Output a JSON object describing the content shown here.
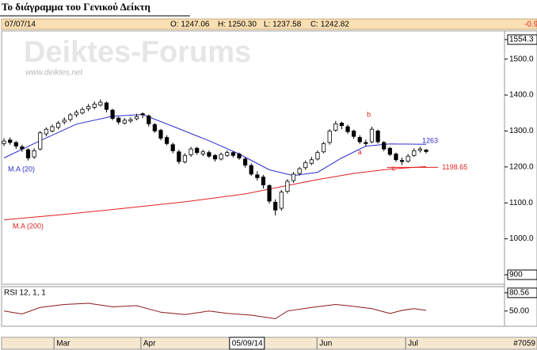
{
  "page_title": "Το διάγραμμα του Γενικού Δείκτη",
  "header": {
    "date": "07/07/14",
    "open": "O: 1247.06",
    "high": "H: 1250.30",
    "low": "L: 1237.58",
    "close": "C: 1242.82",
    "change": "-0.9"
  },
  "watermark": {
    "title": "Deiktes-Forums",
    "url": "www.deiktes.net"
  },
  "record_count": "#7059",
  "chart_data": [
    {
      "type": "candlestick",
      "up_color": "#ffffff",
      "down_color": "#000000",
      "candles": [
        [
          1265,
          1280,
          1258,
          1272
        ],
        [
          1275,
          1282,
          1262,
          1268
        ],
        [
          1268,
          1272,
          1250,
          1258
        ],
        [
          1256,
          1262,
          1242,
          1250
        ],
        [
          1248,
          1252,
          1218,
          1225
        ],
        [
          1228,
          1252,
          1222,
          1245
        ],
        [
          1250,
          1300,
          1246,
          1295
        ],
        [
          1292,
          1310,
          1285,
          1305
        ],
        [
          1300,
          1318,
          1296,
          1312
        ],
        [
          1310,
          1328,
          1305,
          1322
        ],
        [
          1325,
          1338,
          1318,
          1330
        ],
        [
          1332,
          1350,
          1326,
          1345
        ],
        [
          1345,
          1358,
          1338,
          1352
        ],
        [
          1350,
          1366,
          1346,
          1360
        ],
        [
          1362,
          1375,
          1355,
          1368
        ],
        [
          1366,
          1382,
          1360,
          1375
        ],
        [
          1372,
          1388,
          1368,
          1380
        ],
        [
          1378,
          1382,
          1352,
          1360
        ],
        [
          1358,
          1362,
          1330,
          1335
        ],
        [
          1336,
          1340,
          1318,
          1325
        ],
        [
          1322,
          1336,
          1318,
          1330
        ],
        [
          1328,
          1338,
          1322,
          1332
        ],
        [
          1334,
          1348,
          1330,
          1340
        ],
        [
          1348,
          1352,
          1336,
          1345
        ],
        [
          1342,
          1346,
          1312,
          1320
        ],
        [
          1318,
          1322,
          1295,
          1300
        ],
        [
          1302,
          1306,
          1274,
          1280
        ],
        [
          1282,
          1288,
          1260,
          1265
        ],
        [
          1262,
          1268,
          1238,
          1245
        ],
        [
          1242,
          1248,
          1208,
          1215
        ],
        [
          1214,
          1238,
          1210,
          1232
        ],
        [
          1234,
          1256,
          1228,
          1250
        ],
        [
          1252,
          1256,
          1234,
          1240
        ],
        [
          1236,
          1248,
          1230,
          1242
        ],
        [
          1240,
          1246,
          1225,
          1230
        ],
        [
          1232,
          1236,
          1215,
          1222
        ],
        [
          1222,
          1240,
          1218,
          1235
        ],
        [
          1232,
          1246,
          1228,
          1240
        ],
        [
          1240,
          1244,
          1226,
          1232
        ],
        [
          1236,
          1240,
          1220,
          1225
        ],
        [
          1222,
          1228,
          1198,
          1205
        ],
        [
          1204,
          1210,
          1175,
          1180
        ],
        [
          1178,
          1188,
          1162,
          1170
        ],
        [
          1172,
          1178,
          1140,
          1150
        ],
        [
          1148,
          1152,
          1098,
          1105
        ],
        [
          1102,
          1110,
          1065,
          1080
        ],
        [
          1085,
          1136,
          1078,
          1130
        ],
        [
          1132,
          1166,
          1126,
          1160
        ],
        [
          1162,
          1186,
          1156,
          1180
        ],
        [
          1182,
          1200,
          1176,
          1195
        ],
        [
          1198,
          1218,
          1192,
          1212
        ],
        [
          1210,
          1228,
          1205,
          1220
        ],
        [
          1222,
          1246,
          1218,
          1240
        ],
        [
          1242,
          1270,
          1238,
          1265
        ],
        [
          1268,
          1305,
          1262,
          1300
        ],
        [
          1302,
          1328,
          1298,
          1320
        ],
        [
          1322,
          1326,
          1305,
          1315
        ],
        [
          1312,
          1318,
          1292,
          1298
        ],
        [
          1300,
          1304,
          1278,
          1285
        ],
        [
          1282,
          1288,
          1264,
          1270
        ],
        [
          1268,
          1276,
          1258,
          1265
        ],
        [
          1270,
          1312,
          1266,
          1305
        ],
        [
          1300,
          1304,
          1265,
          1270
        ],
        [
          1268,
          1272,
          1244,
          1250
        ],
        [
          1252,
          1256,
          1230,
          1235
        ],
        [
          1236,
          1240,
          1214,
          1220
        ],
        [
          1218,
          1226,
          1205,
          1215
        ],
        [
          1216,
          1236,
          1212,
          1230
        ],
        [
          1232,
          1252,
          1228,
          1245
        ],
        [
          1246,
          1256,
          1240,
          1250
        ],
        [
          1247.06,
          1250.3,
          1237.58,
          1242.82
        ]
      ],
      "overlays": [
        {
          "name": "M.A (20)",
          "color": "#2b2bd0",
          "x": [
            0,
            6,
            12,
            18,
            23,
            28,
            34,
            39,
            44,
            48,
            52,
            56,
            60,
            64,
            70
          ],
          "values": [
            1225,
            1273,
            1319,
            1341,
            1346,
            1313,
            1273,
            1236,
            1192,
            1176,
            1185,
            1225,
            1258,
            1264,
            1263
          ]
        },
        {
          "name": "M.A (200)",
          "color": "#e02020",
          "x": [
            0,
            10,
            20,
            30,
            40,
            46,
            52,
            58,
            64,
            70
          ],
          "values": [
            1053,
            1068,
            1085,
            1103,
            1125,
            1145,
            1165,
            1182,
            1194,
            1201
          ]
        }
      ],
      "hlines": [
        {
          "value": 1198.65,
          "color": "#e02020"
        }
      ],
      "annotations": [
        {
          "text": "a",
          "color": "#e02020"
        },
        {
          "text": "b",
          "color": "#e02020"
        },
        {
          "text": "c",
          "color": "#e02020"
        }
      ],
      "cursor": {
        "x": 37.4,
        "label": "05/09/14"
      },
      "xlim": [
        -0.4,
        83
      ],
      "xticks": [
        {
          "value": 8.3,
          "label": "Mar"
        },
        {
          "value": 22.7,
          "label": "Apr"
        },
        {
          "value": 51.9,
          "label": "Jun"
        },
        {
          "value": 66.6,
          "label": "Jul"
        }
      ],
      "ylim": [
        900,
        1554.3
      ],
      "yticks": [
        1554.3,
        {
          "value": 1500,
          "label": "1500.0"
        },
        {
          "value": 1400,
          "label": "1400.0"
        },
        {
          "value": 1300,
          "label": "1300.0"
        },
        {
          "value": 1200,
          "label": "1200.0"
        },
        {
          "value": 1100,
          "label": "1100.0"
        },
        {
          "value": 1000,
          "label": "1000.0"
        },
        900
      ],
      "grid": false
    },
    {
      "type": "line",
      "title": "RSI 12, 1, 1",
      "color": "#8b1a1a",
      "x": [
        0,
        3,
        6,
        10,
        14,
        18,
        22,
        26,
        30,
        34,
        37,
        41,
        45,
        47,
        51,
        55,
        57,
        61,
        64,
        66,
        68,
        70
      ],
      "values": [
        50,
        45,
        56,
        61,
        63,
        57,
        59,
        48,
        44,
        50,
        46,
        43,
        37,
        50,
        56,
        61,
        59,
        54,
        46,
        51,
        54,
        51
      ],
      "ylim": [
        27,
        91
      ],
      "yticks": [
        80.56,
        {
          "value": 50,
          "label": "50.00"
        }
      ],
      "grid": false
    }
  ]
}
